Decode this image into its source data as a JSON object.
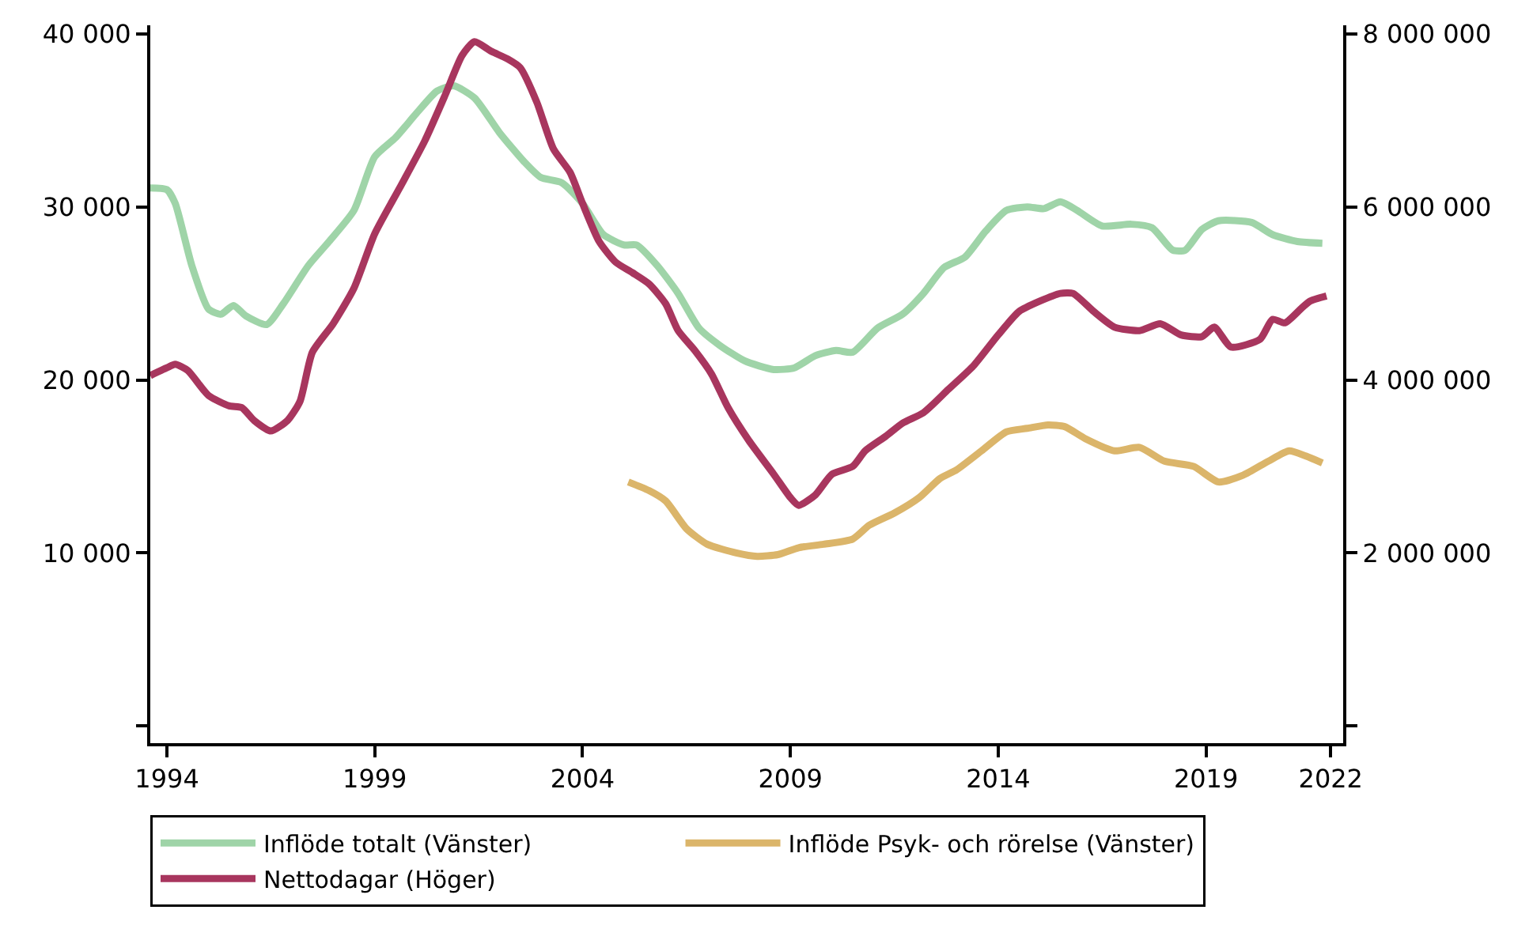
{
  "chart_data": {
    "type": "line",
    "xlim": [
      1993.6,
      2022.3
    ],
    "xticks": [
      1994,
      1999,
      2004,
      2009,
      2014,
      2019,
      2022
    ],
    "ylim": [
      -1000,
      40500
    ],
    "yticks": [
      {
        "value": 0,
        "label": null
      },
      {
        "value": 10000,
        "label": "10 000"
      },
      {
        "value": 20000,
        "label": "20 000"
      },
      {
        "value": 30000,
        "label": "30 000"
      },
      {
        "value": 40000,
        "label": "40 000"
      }
    ],
    "y2lim": [
      -200000,
      8100000
    ],
    "y2ticks": [
      {
        "value": 0,
        "label": null
      },
      {
        "value": 2000000,
        "label": "2 000 000"
      },
      {
        "value": 4000000,
        "label": "4 000 000"
      },
      {
        "value": 6000000,
        "label": "6 000 000"
      },
      {
        "value": 8000000,
        "label": "8 000 000"
      }
    ],
    "legend": "bottom",
    "marker": "none",
    "line_style": "solid",
    "series": [
      {
        "name": "Inflöde totalt (Vänster)",
        "color": "#9fd4a8",
        "x": [
          1993.6,
          1994,
          1994.2,
          1994.6,
          1995.0,
          1995.3,
          1995.6,
          1995.9,
          1996.4,
          1996.8,
          1997.4,
          1997.9,
          1998.5,
          1999.0,
          1999.5,
          2000.0,
          2000.5,
          2000.9,
          2001.4,
          2002.0,
          2002.6,
          2003.0,
          2003.5,
          2004.0,
          2004.5,
          2005.0,
          2005.3,
          2005.8,
          2006.3,
          2006.8,
          2007.3,
          2007.9,
          2008.6,
          2009.1,
          2009.6,
          2010.1,
          2010.5,
          2011.1,
          2011.7,
          2012.2,
          2012.7,
          2013.2,
          2013.7,
          2014.2,
          2014.7,
          2015.1,
          2015.5,
          2015.9,
          2016.5,
          2017.2,
          2017.7,
          2018.2,
          2018.5,
          2018.9,
          2019.3,
          2020.1,
          2020.6,
          2021.2,
          2021.8
        ],
        "values": [
          31100,
          31000,
          30200,
          26600,
          24100,
          23800,
          24300,
          23700,
          23200,
          24400,
          26600,
          28000,
          29800,
          32900,
          34000,
          35400,
          36700,
          37000,
          36300,
          34300,
          32600,
          31700,
          31400,
          30200,
          28400,
          27800,
          27800,
          26600,
          25000,
          23000,
          22000,
          21100,
          20600,
          20700,
          21400,
          21700,
          21600,
          23000,
          23800,
          25000,
          26500,
          27100,
          28600,
          29800,
          30000,
          29900,
          30300,
          29800,
          28900,
          29000,
          28800,
          27500,
          27500,
          28700,
          29200,
          29100,
          28400,
          28000,
          27900
        ]
      },
      {
        "name": "Inflöde Psyk- och rörelse (Vänster)",
        "color": "#dbb56a",
        "x": [
          2005.1,
          2005.6,
          2006.0,
          2006.5,
          2007.0,
          2007.7,
          2008.2,
          2008.7,
          2009.2,
          2009.8,
          2010.5,
          2010.9,
          2011.5,
          2012.1,
          2012.6,
          2013.0,
          2013.6,
          2014.2,
          2014.7,
          2015.2,
          2015.6,
          2016.1,
          2016.8,
          2017.4,
          2018.0,
          2018.7,
          2019.3,
          2019.9,
          2020.5,
          2021.0,
          2021.4,
          2021.8
        ],
        "values": [
          14100,
          13600,
          13000,
          11400,
          10500,
          10000,
          9800,
          9900,
          10300,
          10500,
          10800,
          11600,
          12300,
          13200,
          14300,
          14800,
          15900,
          17000,
          17200,
          17400,
          17300,
          16600,
          15900,
          16100,
          15300,
          15000,
          14100,
          14500,
          15300,
          15900,
          15600,
          15200
        ]
      },
      {
        "name": "Nettodagar (Höger)",
        "color": "#a8365e",
        "axis": "y2",
        "x": [
          1993.6,
          1994,
          1994.2,
          1994.5,
          1995.0,
          1995.5,
          1995.8,
          1996.1,
          1996.5,
          1996.9,
          1997.2,
          1997.5,
          1998.0,
          1998.5,
          1999.0,
          1999.6,
          2000.2,
          2000.7,
          2001.1,
          2001.4,
          2001.8,
          2002.2,
          2002.5,
          2002.9,
          2003.3,
          2003.7,
          2004.0,
          2004.4,
          2004.8,
          2005.2,
          2005.6,
          2006.0,
          2006.3,
          2006.7,
          2007.1,
          2007.5,
          2008.0,
          2008.6,
          2009.0,
          2009.2,
          2009.6,
          2010.0,
          2010.5,
          2010.8,
          2011.3,
          2011.7,
          2012.2,
          2012.8,
          2013.4,
          2014.0,
          2014.5,
          2015.0,
          2015.5,
          2015.8,
          2016.3,
          2016.8,
          2017.4,
          2017.9,
          2018.4,
          2018.9,
          2019.2,
          2019.6,
          2020.3,
          2020.6,
          2020.9,
          2021.3,
          2021.5,
          2021.9
        ],
        "values": [
          4050000,
          4140000,
          4180000,
          4110000,
          3820000,
          3700000,
          3680000,
          3530000,
          3410000,
          3530000,
          3750000,
          4320000,
          4650000,
          5060000,
          5690000,
          6220000,
          6760000,
          7300000,
          7750000,
          7910000,
          7800000,
          7710000,
          7610000,
          7210000,
          6670000,
          6400000,
          6040000,
          5600000,
          5360000,
          5240000,
          5110000,
          4880000,
          4570000,
          4340000,
          4070000,
          3680000,
          3300000,
          2910000,
          2640000,
          2550000,
          2670000,
          2910000,
          3000000,
          3180000,
          3350000,
          3500000,
          3620000,
          3890000,
          4160000,
          4520000,
          4790000,
          4910000,
          5000000,
          5000000,
          4790000,
          4610000,
          4570000,
          4650000,
          4520000,
          4500000,
          4610000,
          4380000,
          4470000,
          4700000,
          4660000,
          4830000,
          4910000,
          4970000
        ]
      }
    ]
  }
}
